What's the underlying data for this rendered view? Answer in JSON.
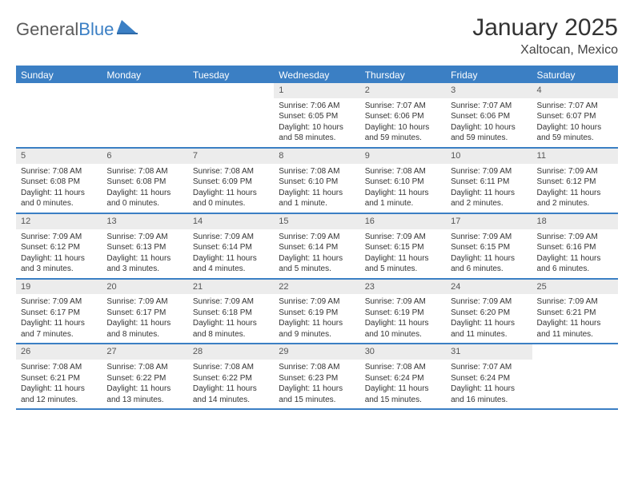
{
  "logo": {
    "word1": "General",
    "word2": "Blue",
    "color": "#3b7fc4"
  },
  "title": "January 2025",
  "location": "Xaltocan, Mexico",
  "colors": {
    "header_bg": "#3b7fc4",
    "header_text": "#ffffff",
    "daynum_bg": "#ececec",
    "border": "#3b7fc4",
    "text": "#333333",
    "background": "#ffffff"
  },
  "days_of_week": [
    "Sunday",
    "Monday",
    "Tuesday",
    "Wednesday",
    "Thursday",
    "Friday",
    "Saturday"
  ],
  "weeks": [
    [
      {
        "n": "",
        "sr": "",
        "ss": "",
        "dl": ""
      },
      {
        "n": "",
        "sr": "",
        "ss": "",
        "dl": ""
      },
      {
        "n": "",
        "sr": "",
        "ss": "",
        "dl": ""
      },
      {
        "n": "1",
        "sr": "Sunrise: 7:06 AM",
        "ss": "Sunset: 6:05 PM",
        "dl": "Daylight: 10 hours and 58 minutes."
      },
      {
        "n": "2",
        "sr": "Sunrise: 7:07 AM",
        "ss": "Sunset: 6:06 PM",
        "dl": "Daylight: 10 hours and 59 minutes."
      },
      {
        "n": "3",
        "sr": "Sunrise: 7:07 AM",
        "ss": "Sunset: 6:06 PM",
        "dl": "Daylight: 10 hours and 59 minutes."
      },
      {
        "n": "4",
        "sr": "Sunrise: 7:07 AM",
        "ss": "Sunset: 6:07 PM",
        "dl": "Daylight: 10 hours and 59 minutes."
      }
    ],
    [
      {
        "n": "5",
        "sr": "Sunrise: 7:08 AM",
        "ss": "Sunset: 6:08 PM",
        "dl": "Daylight: 11 hours and 0 minutes."
      },
      {
        "n": "6",
        "sr": "Sunrise: 7:08 AM",
        "ss": "Sunset: 6:08 PM",
        "dl": "Daylight: 11 hours and 0 minutes."
      },
      {
        "n": "7",
        "sr": "Sunrise: 7:08 AM",
        "ss": "Sunset: 6:09 PM",
        "dl": "Daylight: 11 hours and 0 minutes."
      },
      {
        "n": "8",
        "sr": "Sunrise: 7:08 AM",
        "ss": "Sunset: 6:10 PM",
        "dl": "Daylight: 11 hours and 1 minute."
      },
      {
        "n": "9",
        "sr": "Sunrise: 7:08 AM",
        "ss": "Sunset: 6:10 PM",
        "dl": "Daylight: 11 hours and 1 minute."
      },
      {
        "n": "10",
        "sr": "Sunrise: 7:09 AM",
        "ss": "Sunset: 6:11 PM",
        "dl": "Daylight: 11 hours and 2 minutes."
      },
      {
        "n": "11",
        "sr": "Sunrise: 7:09 AM",
        "ss": "Sunset: 6:12 PM",
        "dl": "Daylight: 11 hours and 2 minutes."
      }
    ],
    [
      {
        "n": "12",
        "sr": "Sunrise: 7:09 AM",
        "ss": "Sunset: 6:12 PM",
        "dl": "Daylight: 11 hours and 3 minutes."
      },
      {
        "n": "13",
        "sr": "Sunrise: 7:09 AM",
        "ss": "Sunset: 6:13 PM",
        "dl": "Daylight: 11 hours and 3 minutes."
      },
      {
        "n": "14",
        "sr": "Sunrise: 7:09 AM",
        "ss": "Sunset: 6:14 PM",
        "dl": "Daylight: 11 hours and 4 minutes."
      },
      {
        "n": "15",
        "sr": "Sunrise: 7:09 AM",
        "ss": "Sunset: 6:14 PM",
        "dl": "Daylight: 11 hours and 5 minutes."
      },
      {
        "n": "16",
        "sr": "Sunrise: 7:09 AM",
        "ss": "Sunset: 6:15 PM",
        "dl": "Daylight: 11 hours and 5 minutes."
      },
      {
        "n": "17",
        "sr": "Sunrise: 7:09 AM",
        "ss": "Sunset: 6:15 PM",
        "dl": "Daylight: 11 hours and 6 minutes."
      },
      {
        "n": "18",
        "sr": "Sunrise: 7:09 AM",
        "ss": "Sunset: 6:16 PM",
        "dl": "Daylight: 11 hours and 6 minutes."
      }
    ],
    [
      {
        "n": "19",
        "sr": "Sunrise: 7:09 AM",
        "ss": "Sunset: 6:17 PM",
        "dl": "Daylight: 11 hours and 7 minutes."
      },
      {
        "n": "20",
        "sr": "Sunrise: 7:09 AM",
        "ss": "Sunset: 6:17 PM",
        "dl": "Daylight: 11 hours and 8 minutes."
      },
      {
        "n": "21",
        "sr": "Sunrise: 7:09 AM",
        "ss": "Sunset: 6:18 PM",
        "dl": "Daylight: 11 hours and 8 minutes."
      },
      {
        "n": "22",
        "sr": "Sunrise: 7:09 AM",
        "ss": "Sunset: 6:19 PM",
        "dl": "Daylight: 11 hours and 9 minutes."
      },
      {
        "n": "23",
        "sr": "Sunrise: 7:09 AM",
        "ss": "Sunset: 6:19 PM",
        "dl": "Daylight: 11 hours and 10 minutes."
      },
      {
        "n": "24",
        "sr": "Sunrise: 7:09 AM",
        "ss": "Sunset: 6:20 PM",
        "dl": "Daylight: 11 hours and 11 minutes."
      },
      {
        "n": "25",
        "sr": "Sunrise: 7:09 AM",
        "ss": "Sunset: 6:21 PM",
        "dl": "Daylight: 11 hours and 11 minutes."
      }
    ],
    [
      {
        "n": "26",
        "sr": "Sunrise: 7:08 AM",
        "ss": "Sunset: 6:21 PM",
        "dl": "Daylight: 11 hours and 12 minutes."
      },
      {
        "n": "27",
        "sr": "Sunrise: 7:08 AM",
        "ss": "Sunset: 6:22 PM",
        "dl": "Daylight: 11 hours and 13 minutes."
      },
      {
        "n": "28",
        "sr": "Sunrise: 7:08 AM",
        "ss": "Sunset: 6:22 PM",
        "dl": "Daylight: 11 hours and 14 minutes."
      },
      {
        "n": "29",
        "sr": "Sunrise: 7:08 AM",
        "ss": "Sunset: 6:23 PM",
        "dl": "Daylight: 11 hours and 15 minutes."
      },
      {
        "n": "30",
        "sr": "Sunrise: 7:08 AM",
        "ss": "Sunset: 6:24 PM",
        "dl": "Daylight: 11 hours and 15 minutes."
      },
      {
        "n": "31",
        "sr": "Sunrise: 7:07 AM",
        "ss": "Sunset: 6:24 PM",
        "dl": "Daylight: 11 hours and 16 minutes."
      },
      {
        "n": "",
        "sr": "",
        "ss": "",
        "dl": ""
      }
    ]
  ]
}
